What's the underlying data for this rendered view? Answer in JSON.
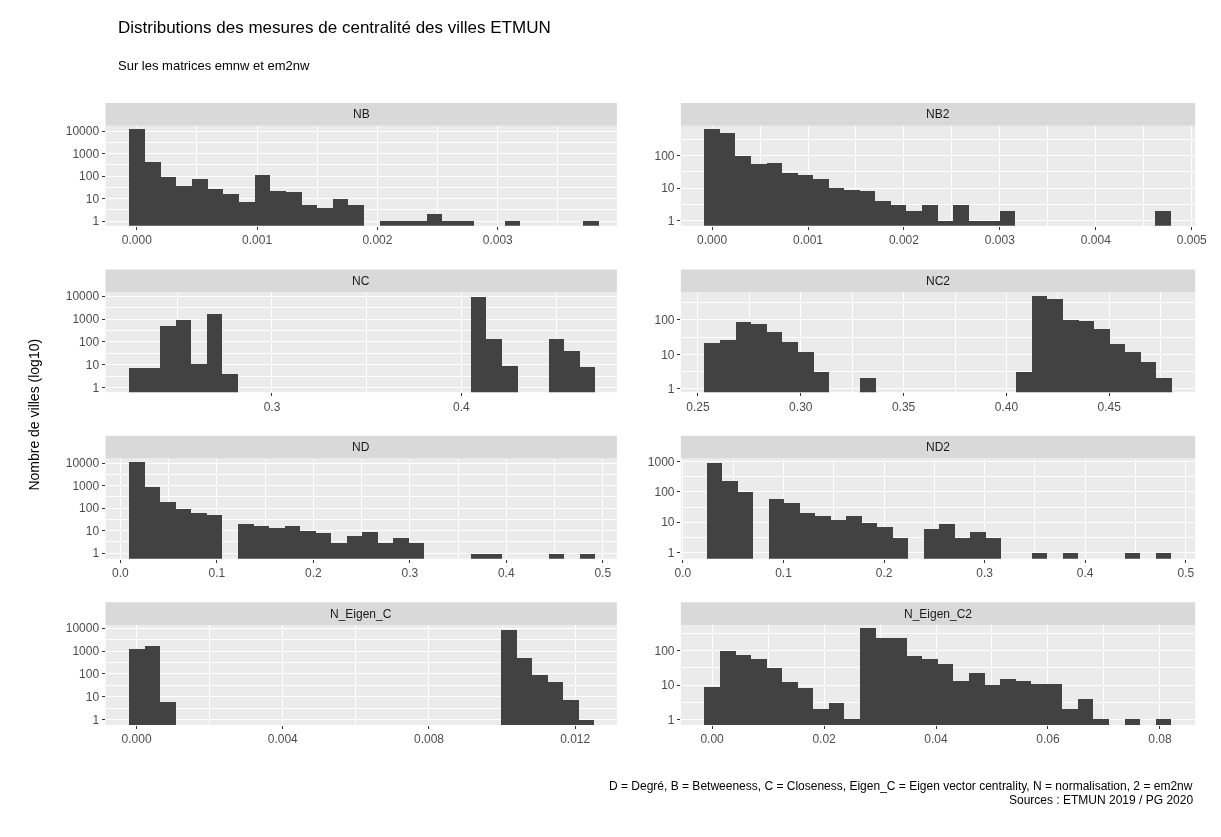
{
  "chart_data": [
    {
      "type": "other",
      "title": "Distributions des mesures de centralité des villes ETMUN",
      "subtitle": "Sur les matrices emnw et em2nw",
      "ylabel": "Nombre de villes (log10)",
      "annotations": [
        "D = Degré, B = Betweeness, C = Closeness, Eigen_C = Eigen vector centrality, N = normalisation, 2 = em2nw",
        "Sources : ETMUN 2019 / PG 2020"
      ]
    },
    {
      "type": "histogram",
      "title": "NB",
      "color": "#424242",
      "log": "y",
      "grid": true,
      "bins": [
        -6.5e-05,
        6.5e-05,
        0.000195,
        0.000325,
        0.000455,
        0.000585,
        0.000715,
        0.000845,
        0.000975,
        0.001105,
        0.001235,
        0.001365,
        0.001495,
        0.001625,
        0.001755,
        0.001885,
        0.002015,
        0.002145,
        0.002275,
        0.002405,
        0.002535,
        0.002665,
        0.002795,
        0.002925,
        0.003055,
        0.003185,
        0.003315,
        0.003445,
        0.003575,
        0.003705,
        0.003835
      ],
      "values": [
        12000,
        420,
        88,
        35,
        78,
        27,
        16,
        7,
        110,
        21,
        19,
        5,
        4,
        10,
        5,
        null,
        1,
        1,
        1,
        2,
        1,
        1,
        null,
        null,
        1,
        null,
        null,
        null,
        null,
        1
      ],
      "xlim": [
        -0.00026,
        0.00399
      ],
      "xticks": [
        {
          "value": 0,
          "label": "0.000"
        },
        0.001,
        0.002,
        0.003
      ],
      "ylim": [
        0.61,
        17000
      ],
      "yticks": [
        1,
        10,
        100,
        1000,
        10000
      ]
    },
    {
      "type": "histogram",
      "title": "NB2",
      "color": "#424242",
      "log": "y",
      "grid": true,
      "bins": [
        -8.1e-05,
        8.1e-05,
        0.000243,
        0.000405,
        0.000567,
        0.000729,
        0.000891,
        0.001053,
        0.001215,
        0.001377,
        0.001539,
        0.001701,
        0.001863,
        0.002025,
        0.002187,
        0.002349,
        0.002511,
        0.002673,
        0.002835,
        0.002997,
        0.003159,
        0.003321,
        0.003483,
        0.003645,
        0.003807,
        0.003969,
        0.004131,
        0.004293,
        0.004455,
        0.004617,
        0.004779
      ],
      "values": [
        670,
        510,
        97,
        56,
        59,
        30,
        25,
        19,
        10,
        9,
        8,
        4,
        3,
        2,
        3,
        1,
        3,
        1,
        1,
        2,
        null,
        null,
        null,
        null,
        null,
        null,
        null,
        null,
        null,
        2
      ],
      "xlim": [
        -0.000325,
        0.005036
      ],
      "xticks": [
        {
          "value": 0,
          "label": "0.000"
        },
        0.001,
        0.002,
        0.003,
        0.004,
        0.005
      ],
      "ylim": [
        0.68,
        830
      ],
      "yticks": [
        1,
        10,
        100
      ]
    },
    {
      "type": "histogram",
      "title": "NC",
      "color": "#424242",
      "log": "y",
      "grid": true,
      "bins": [
        0.2244,
        0.2326,
        0.2408,
        0.249,
        0.2572,
        0.2654,
        0.2736,
        0.2818,
        0.29,
        0.2982,
        0.3064,
        0.3146,
        0.3228,
        0.331,
        0.3392,
        0.3474,
        0.3556,
        0.3638,
        0.372,
        0.3802,
        0.3884,
        0.3966,
        0.4048,
        0.413,
        0.4212,
        0.4294,
        0.4376,
        0.4458,
        0.454,
        0.4622,
        0.4704
      ],
      "values": [
        7,
        7,
        470,
        850,
        11,
        1600,
        4,
        null,
        null,
        null,
        null,
        null,
        null,
        null,
        null,
        null,
        null,
        null,
        null,
        null,
        null,
        null,
        9200,
        130,
        9,
        null,
        null,
        130,
        38,
        8
      ],
      "xlim": [
        0.2121,
        0.4821
      ],
      "xticks": [
        0.3,
        0.4
      ],
      "ylim": [
        0.62,
        14900
      ],
      "yticks": [
        1,
        10,
        100,
        1000,
        10000
      ]
    },
    {
      "type": "histogram",
      "title": "NC2",
      "color": "#424242",
      "log": "y",
      "grid": true,
      "bins": [
        0.2531,
        0.2607,
        0.2683,
        0.2758,
        0.2834,
        0.291,
        0.2986,
        0.3062,
        0.3137,
        0.3213,
        0.3289,
        0.3365,
        0.3441,
        0.3516,
        0.3592,
        0.3668,
        0.3744,
        0.382,
        0.3895,
        0.3971,
        0.4047,
        0.4123,
        0.4199,
        0.4274,
        0.435,
        0.4426,
        0.4502,
        0.4578,
        0.4653,
        0.4729,
        0.4805
      ],
      "values": [
        21,
        26,
        88,
        73,
        45,
        23,
        12,
        3,
        null,
        null,
        2,
        null,
        null,
        null,
        null,
        null,
        null,
        null,
        null,
        null,
        3,
        490,
        400,
        100,
        95,
        53,
        20,
        12,
        6,
        2
      ],
      "xlim": [
        0.2417,
        0.4918
      ],
      "xticks": [
        0.25,
        {
          "value": 0.3,
          "label": "0.30"
        },
        0.35,
        {
          "value": 0.4,
          "label": "0.40"
        },
        0.45
      ],
      "ylim": [
        0.8,
        640
      ],
      "yticks": [
        1,
        10,
        100
      ]
    },
    {
      "type": "histogram",
      "title": "ND",
      "color": "#424242",
      "log": "y",
      "grid": true,
      "bins": [
        0.0087,
        0.0248,
        0.0409,
        0.057,
        0.0731,
        0.0892,
        0.1053,
        0.1214,
        0.1375,
        0.1536,
        0.1697,
        0.1858,
        0.2019,
        0.218,
        0.2341,
        0.2502,
        0.2663,
        0.2824,
        0.2985,
        0.3146,
        0.3307,
        0.3468,
        0.3629,
        0.379,
        0.3951,
        0.4112,
        0.4273,
        0.4434,
        0.4595,
        0.4756,
        0.4917
      ],
      "values": [
        12000,
        900,
        200,
        100,
        62,
        50,
        null,
        20,
        17,
        13,
        17,
        10,
        8,
        3,
        6,
        9,
        3,
        5,
        3,
        null,
        null,
        null,
        1,
        1,
        null,
        null,
        null,
        1,
        null,
        1
      ],
      "xlim": [
        -0.0154,
        0.5146
      ],
      "xticks": [
        {
          "value": 0,
          "label": "0.0"
        },
        0.1,
        0.2,
        0.3,
        0.4,
        0.5
      ],
      "ylim": [
        0.57,
        16000
      ],
      "yticks": [
        1,
        10,
        100,
        1000,
        10000
      ]
    },
    {
      "type": "histogram",
      "title": "ND2",
      "color": "#424242",
      "log": "y",
      "grid": true,
      "bins": [
        0.0236,
        0.039,
        0.0544,
        0.0698,
        0.0852,
        0.1006,
        0.116,
        0.1314,
        0.1468,
        0.1622,
        0.1776,
        0.193,
        0.2084,
        0.2238,
        0.2392,
        0.2546,
        0.27,
        0.2854,
        0.3008,
        0.3162,
        0.3316,
        0.347,
        0.3624,
        0.3778,
        0.3932,
        0.4086,
        0.424,
        0.4394,
        0.4548,
        0.4702,
        0.4856
      ],
      "values": [
        940,
        229,
        100,
        null,
        62,
        44,
        21,
        17,
        12,
        17,
        10,
        7,
        3,
        null,
        6,
        9,
        3,
        5,
        3,
        null,
        null,
        1,
        null,
        1,
        null,
        null,
        null,
        1,
        null,
        1
      ],
      "xlim": [
        -0.002,
        0.5094
      ],
      "xticks": [
        {
          "value": 0,
          "label": "0.0"
        },
        0.1,
        0.2,
        0.3,
        0.4,
        0.5
      ],
      "ylim": [
        0.62,
        1270
      ],
      "yticks": [
        1,
        10,
        100,
        1000
      ]
    },
    {
      "type": "histogram",
      "title": "N_Eigen_C",
      "color": "#424242",
      "log": "y",
      "grid": true,
      "bins": [
        -0.000212,
        0.000212,
        0.000636,
        0.00106,
        0.001484,
        0.001908,
        0.002332,
        0.002756,
        0.00318,
        0.003604,
        0.004028,
        0.004452,
        0.004876,
        0.0053,
        0.005724,
        0.006148,
        0.006572,
        0.006996,
        0.00742,
        0.007844,
        0.008268,
        0.008692,
        0.009116,
        0.00954,
        0.009964,
        0.010388,
        0.010812,
        0.011236,
        0.01166,
        0.012084,
        0.012508
      ],
      "values": [
        1200,
        1600,
        6,
        null,
        null,
        null,
        null,
        null,
        null,
        null,
        null,
        null,
        null,
        null,
        null,
        null,
        null,
        null,
        null,
        null,
        null,
        null,
        null,
        null,
        8500,
        500,
        85,
        42,
        7,
        1
      ],
      "xlim": [
        -0.00085,
        0.01314
      ],
      "xticks": [
        {
          "value": 0,
          "label": "0.000"
        },
        0.004,
        0.008,
        0.012
      ],
      "ylim": [
        0.58,
        13700
      ],
      "yticks": [
        1,
        10,
        100,
        1000,
        10000
      ]
    },
    {
      "type": "histogram",
      "title": "N_Eigen_C2",
      "color": "#424242",
      "log": "y",
      "grid": true,
      "bins": [
        -0.00139,
        0.00139,
        0.00417,
        0.00695,
        0.00973,
        0.01251,
        0.01529,
        0.01807,
        0.02085,
        0.02363,
        0.02641,
        0.02919,
        0.03197,
        0.03475,
        0.03753,
        0.04031,
        0.04309,
        0.04587,
        0.04865,
        0.05143,
        0.05421,
        0.05699,
        0.05977,
        0.06255,
        0.06533,
        0.06811,
        0.07089,
        0.07367,
        0.07645,
        0.07923,
        0.08201
      ],
      "values": [
        9,
        95,
        73,
        59,
        32,
        12,
        8,
        2,
        3,
        1,
        450,
        240,
        240,
        70,
        56,
        41,
        13,
        22,
        10,
        15,
        13,
        11,
        11,
        2,
        4,
        1,
        null,
        1,
        null,
        1
      ],
      "xlim": [
        -0.00557,
        0.0863
      ],
      "xticks": [
        {
          "value": 0,
          "label": "0.00"
        },
        0.02,
        0.04,
        0.06,
        0.08
      ],
      "ylim": [
        0.69,
        560
      ],
      "yticks": [
        1,
        10,
        100
      ]
    }
  ]
}
